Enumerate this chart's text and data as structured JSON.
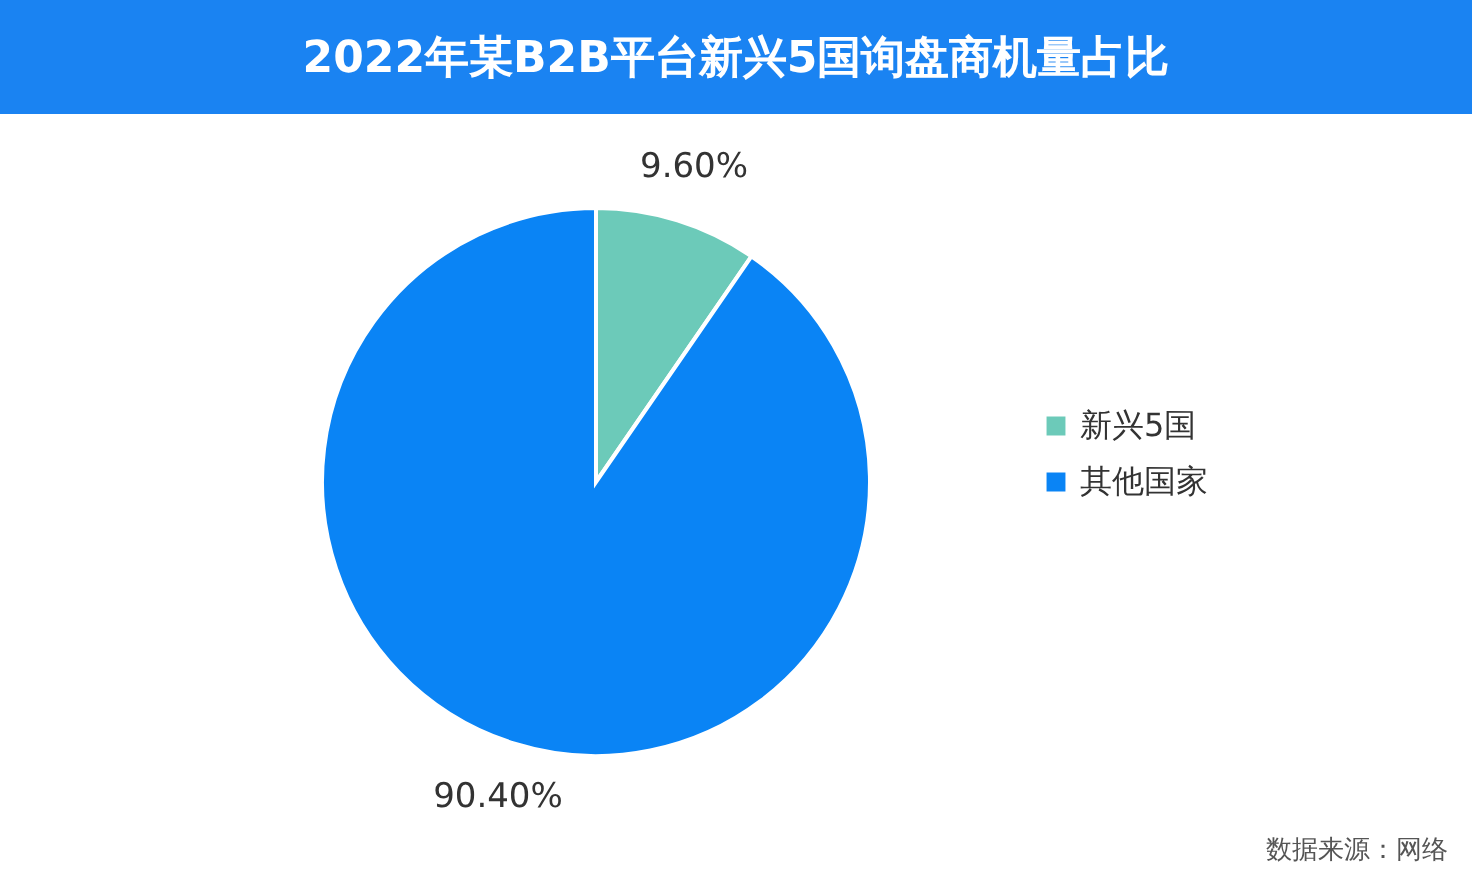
{
  "chart_data": {
    "type": "pie",
    "title": "2022年某B2B平台新兴5国询盘商机量占比",
    "categories": [
      "新兴5国",
      "其他国家"
    ],
    "values": [
      9.6,
      90.4
    ],
    "colors": [
      "#6ccab9",
      "#0a84f5"
    ],
    "value_labels": [
      "9.60%",
      "90.40%"
    ],
    "legend": "right",
    "annotations": [
      "数据来源：网络"
    ]
  }
}
